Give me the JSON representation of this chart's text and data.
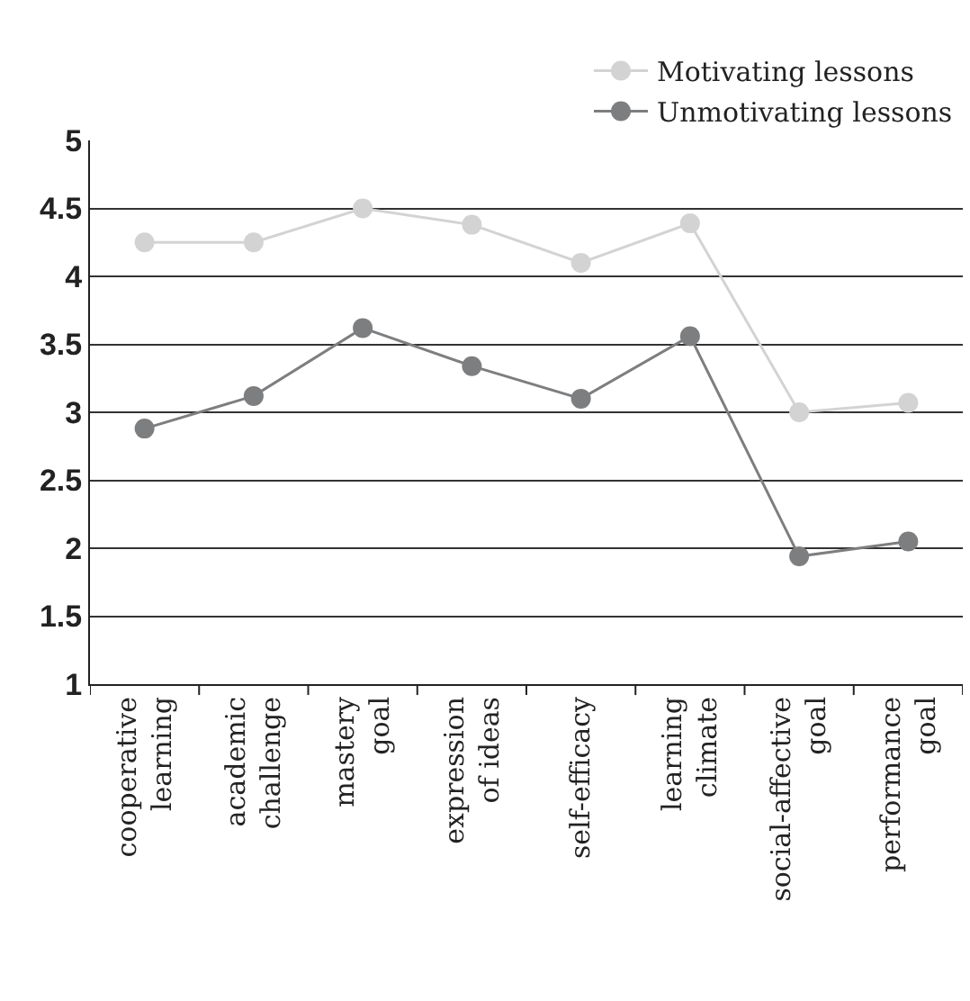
{
  "chart_data": {
    "type": "line",
    "categories": [
      "cooperative\nlearning",
      "academic\nchallenge",
      "mastery\ngoal",
      "expression\nof ideas",
      "self-efficacy",
      "learning\nclimate",
      "social-affective\ngoal",
      "performance\ngoal"
    ],
    "series": [
      {
        "name": "Motivating lessons",
        "color": "#d3d3d3",
        "values": [
          4.25,
          4.25,
          4.5,
          4.38,
          4.1,
          4.39,
          3.0,
          3.07
        ]
      },
      {
        "name": "Unmotivating lessons",
        "color": "#7d7e80",
        "values": [
          2.88,
          3.12,
          3.62,
          3.34,
          3.1,
          3.56,
          1.94,
          2.05
        ]
      }
    ],
    "ylim": [
      1,
      5
    ],
    "yticks": [
      1,
      1.5,
      2,
      2.5,
      3,
      3.5,
      4,
      4.5,
      5
    ],
    "grid": "y",
    "legend": "top right",
    "marker": "circle",
    "line_style": "solid"
  }
}
